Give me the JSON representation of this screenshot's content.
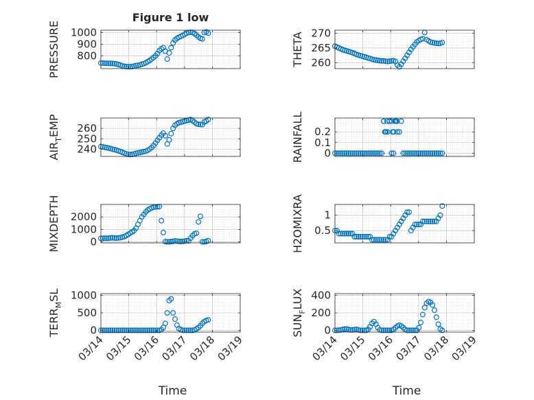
{
  "chart_data": {
    "type": "scatter",
    "title": "Figure 1 low",
    "xlabel": "Time",
    "x_tick_labels": [
      "03/14",
      "03/15",
      "03/16",
      "03/17",
      "03/18",
      "03/19"
    ],
    "x_tick_values": [
      0,
      1,
      2,
      3,
      4,
      5
    ],
    "x_unit": "days since 03/14",
    "marker": "open circle",
    "color": "#0072BD",
    "grid": "major and minor (dotted)",
    "panels": [
      {
        "id": "pressure",
        "ylabel": "PRESSURE",
        "ylim": [
          690,
          1020
        ],
        "yticks": [
          800,
          900,
          1000
        ],
        "ytick_labels": [
          "800",
          "900",
          "1000"
        ],
        "x": [
          0,
          0.07,
          0.14,
          0.21,
          0.28,
          0.35,
          0.42,
          0.49,
          0.56,
          0.63,
          0.7,
          0.77,
          0.84,
          0.91,
          0.98,
          1.05,
          1.12,
          1.19,
          1.26,
          1.33,
          1.4,
          1.47,
          1.54,
          1.61,
          1.68,
          1.75,
          1.82,
          1.89,
          1.96,
          2.03,
          2.1,
          2.17,
          2.24,
          2.31,
          2.38,
          2.45,
          2.52,
          2.59,
          2.66,
          2.73,
          2.8,
          2.87,
          2.94,
          3.01,
          3.08,
          3.15,
          3.22,
          3.29,
          3.36,
          3.43,
          3.5,
          3.57,
          3.64,
          3.71,
          3.78,
          3.85
        ],
        "y": [
          738,
          738,
          736,
          736,
          735,
          735,
          734,
          733,
          730,
          725,
          720,
          713,
          710,
          707,
          706,
          706,
          708,
          712,
          716,
          718,
          722,
          728,
          732,
          740,
          750,
          760,
          772,
          786,
          800,
          820,
          845,
          860,
          870,
          840,
          772,
          825,
          870,
          910,
          935,
          950,
          960,
          968,
          975,
          985,
          995,
          1000,
          1002,
          1000,
          992,
          978,
          962,
          950,
          945,
          1000,
          1005,
          995
        ]
      },
      {
        "id": "theta",
        "ylabel": "THETA",
        "ylim": [
          258,
          271
        ],
        "yticks": [
          260,
          265,
          270
        ],
        "ytick_labels": [
          "260",
          "265",
          "270"
        ],
        "x": [
          0,
          0.07,
          0.14,
          0.21,
          0.28,
          0.35,
          0.42,
          0.49,
          0.56,
          0.63,
          0.7,
          0.77,
          0.84,
          0.91,
          0.98,
          1.05,
          1.12,
          1.19,
          1.26,
          1.33,
          1.4,
          1.47,
          1.54,
          1.61,
          1.68,
          1.75,
          1.82,
          1.89,
          1.96,
          2.03,
          2.1,
          2.17,
          2.24,
          2.31,
          2.38,
          2.45,
          2.52,
          2.59,
          2.66,
          2.73,
          2.8,
          2.87,
          2.94,
          3.01,
          3.08,
          3.15,
          3.22,
          3.29,
          3.36,
          3.43,
          3.5,
          3.57,
          3.64,
          3.71,
          3.78,
          3.85
        ],
        "y": [
          265.6,
          265.3,
          265.0,
          264.7,
          264.4,
          264.2,
          264.0,
          263.8,
          263.6,
          263.4,
          263.1,
          262.8,
          262.6,
          262.4,
          262.2,
          262.0,
          261.8,
          261.6,
          261.4,
          261.2,
          261.0,
          260.9,
          260.8,
          260.7,
          260.6,
          260.6,
          260.5,
          260.4,
          260.5,
          260.6,
          260.7,
          260.4,
          259.2,
          258.6,
          259.5,
          260.5,
          261.5,
          262.5,
          263.5,
          264.5,
          265.4,
          266.2,
          267.0,
          267.5,
          267.9,
          268.1,
          270.2,
          267.8,
          267.4,
          267.0,
          266.8,
          266.7,
          266.6,
          266.5,
          266.6,
          266.8
        ]
      },
      {
        "id": "air_temp",
        "ylabel": "AIR",
        "ylabel_sub": "T",
        "ylabel_rest": "EMP",
        "ylim": [
          233,
          270
        ],
        "yticks": [
          240,
          250,
          260
        ],
        "ytick_labels": [
          "240",
          "250",
          "260"
        ],
        "x": [
          0,
          0.07,
          0.14,
          0.21,
          0.28,
          0.35,
          0.42,
          0.49,
          0.56,
          0.63,
          0.7,
          0.77,
          0.84,
          0.91,
          0.98,
          1.05,
          1.12,
          1.19,
          1.26,
          1.33,
          1.4,
          1.47,
          1.54,
          1.61,
          1.68,
          1.75,
          1.82,
          1.89,
          1.96,
          2.03,
          2.1,
          2.17,
          2.24,
          2.31,
          2.38,
          2.45,
          2.52,
          2.59,
          2.66,
          2.73,
          2.8,
          2.87,
          2.94,
          3.01,
          3.08,
          3.15,
          3.22,
          3.29,
          3.36,
          3.43,
          3.5,
          3.57,
          3.64,
          3.71,
          3.78,
          3.85
        ],
        "y": [
          242.5,
          242.2,
          241.8,
          241.4,
          241.0,
          240.5,
          240.0,
          239.5,
          239.0,
          238.4,
          237.8,
          237.0,
          236.2,
          235.5,
          235.0,
          234.8,
          235.0,
          235.4,
          236.0,
          236.4,
          236.8,
          237.2,
          237.6,
          238.0,
          238.8,
          240.0,
          241.5,
          243.5,
          246.0,
          248.5,
          251.0,
          253.5,
          255.5,
          253.0,
          245.0,
          249.0,
          255.0,
          260.0,
          263.0,
          264.5,
          265.5,
          266.0,
          266.5,
          267.0,
          267.5,
          268.0,
          268.5,
          267.5,
          266.0,
          264.5,
          264.0,
          263.8,
          263.6,
          266.2,
          267.0,
          268.5
        ]
      },
      {
        "id": "rainfall",
        "ylabel": "RAINFALL",
        "ylim": [
          -0.03,
          0.33
        ],
        "yticks": [
          0,
          0.1,
          0.2
        ],
        "ytick_labels": [
          "0",
          "0.1",
          "0.2"
        ],
        "x": [
          0,
          0.07,
          0.14,
          0.21,
          0.28,
          0.35,
          0.42,
          0.49,
          0.56,
          0.63,
          0.7,
          0.77,
          0.84,
          0.91,
          0.98,
          1.05,
          1.12,
          1.19,
          1.26,
          1.33,
          1.4,
          1.47,
          1.54,
          1.61,
          1.68,
          1.75,
          1.82,
          1.89,
          1.96,
          2.03,
          2.1,
          2.17,
          2.24,
          2.31,
          2.38,
          2.45,
          2.52,
          2.59,
          2.66,
          2.73,
          2.8,
          2.87,
          2.94,
          3.01,
          3.08,
          3.15,
          3.22,
          3.29,
          3.36,
          3.43,
          3.5,
          3.57,
          3.64,
          3.71,
          3.78,
          3.85,
          1.75,
          1.79,
          1.83,
          1.87,
          2.03,
          2.07,
          2.11,
          2.15,
          2.19,
          2.23
        ],
        "y": [
          0,
          0,
          0,
          0,
          0,
          0,
          0,
          0,
          0,
          0,
          0,
          0,
          0,
          0,
          0,
          0,
          0,
          0,
          0,
          0,
          0,
          0,
          0,
          0,
          0,
          0.3,
          0.2,
          0.2,
          0.3,
          0,
          0,
          0.3,
          0.2,
          0.2,
          0.3,
          0,
          0,
          0,
          0,
          0,
          0,
          0,
          0,
          0,
          0,
          0,
          0,
          0,
          0,
          0,
          0,
          0,
          0,
          0,
          0,
          0,
          0.3,
          0.2,
          0.2,
          0.3,
          0.3,
          0.2,
          0.2,
          0.3,
          0.3,
          0.3
        ]
      },
      {
        "id": "mixdepth",
        "ylabel": "MIXDEPTH",
        "ylim": [
          -80,
          3000
        ],
        "yticks": [
          0,
          1000,
          2000
        ],
        "ytick_labels": [
          "0",
          "1000",
          "2000"
        ],
        "x": [
          0,
          0.07,
          0.14,
          0.21,
          0.28,
          0.35,
          0.42,
          0.49,
          0.56,
          0.63,
          0.7,
          0.77,
          0.84,
          0.91,
          0.98,
          1.05,
          1.12,
          1.19,
          1.26,
          1.33,
          1.4,
          1.47,
          1.54,
          1.61,
          1.68,
          1.75,
          1.82,
          1.89,
          1.96,
          2.03,
          2.1,
          2.17,
          2.24,
          2.31,
          2.38,
          2.45,
          2.52,
          2.59,
          2.66,
          2.73,
          2.8,
          2.87,
          2.94,
          3.01,
          3.08,
          3.15,
          3.22,
          3.29,
          3.36,
          3.43,
          3.5,
          3.57,
          3.64,
          3.71,
          3.78,
          3.85
        ],
        "y": [
          280,
          290,
          300,
          290,
          300,
          320,
          330,
          310,
          300,
          320,
          340,
          380,
          420,
          500,
          600,
          700,
          800,
          900,
          1100,
          1400,
          1700,
          2000,
          2200,
          2400,
          2550,
          2650,
          2720,
          2780,
          2800,
          2820,
          2830,
          1700,
          750,
          20,
          0,
          0,
          20,
          40,
          80,
          60,
          40,
          30,
          40,
          60,
          100,
          80,
          300,
          500,
          650,
          700,
          1600,
          2050,
          0,
          0,
          30,
          100
        ]
      },
      {
        "id": "h2omixra",
        "ylabel": "H2OMIXRA",
        "ylim": [
          0.1,
          1.35
        ],
        "yticks": [
          0.5,
          1
        ],
        "ytick_labels": [
          "0.5",
          "1"
        ],
        "x": [
          0,
          0.07,
          0.14,
          0.21,
          0.28,
          0.35,
          0.42,
          0.49,
          0.56,
          0.63,
          0.7,
          0.77,
          0.84,
          0.91,
          0.98,
          1.05,
          1.12,
          1.19,
          1.26,
          1.33,
          1.4,
          1.47,
          1.54,
          1.61,
          1.68,
          1.75,
          1.82,
          1.89,
          1.96,
          2.03,
          2.1,
          2.17,
          2.24,
          2.31,
          2.38,
          2.45,
          2.52,
          2.59,
          2.66,
          2.73,
          2.8,
          2.87,
          2.94,
          3.01,
          3.08,
          3.15,
          3.22,
          3.29,
          3.36,
          3.43,
          3.5,
          3.57,
          3.64,
          3.71,
          3.78,
          3.85
        ],
        "y": [
          0.5,
          0.5,
          0.4,
          0.4,
          0.4,
          0.4,
          0.4,
          0.4,
          0.4,
          0.4,
          0.3,
          0.3,
          0.3,
          0.3,
          0.3,
          0.3,
          0.3,
          0.3,
          0.3,
          0.2,
          0.2,
          0.2,
          0.2,
          0.2,
          0.2,
          0.2,
          0.2,
          0.2,
          0.3,
          0.3,
          0.4,
          0.5,
          0.6,
          0.7,
          0.8,
          0.9,
          1.0,
          1.1,
          1.1,
          0.5,
          0.6,
          0.7,
          0.7,
          0.7,
          0.7,
          0.8,
          0.8,
          0.8,
          0.8,
          0.8,
          0.8,
          0.8,
          0.8,
          0.9,
          1.0,
          1.3
        ]
      },
      {
        "id": "terr_msl",
        "ylabel": "TERR",
        "ylabel_sub": "M",
        "ylabel_rest": "SL",
        "ylim": [
          -50,
          1050
        ],
        "yticks": [
          0,
          500,
          1000
        ],
        "ytick_labels": [
          "0",
          "500",
          "1000"
        ],
        "x": [
          0,
          0.07,
          0.14,
          0.21,
          0.28,
          0.35,
          0.42,
          0.49,
          0.56,
          0.63,
          0.7,
          0.77,
          0.84,
          0.91,
          0.98,
          1.05,
          1.12,
          1.19,
          1.26,
          1.33,
          1.4,
          1.47,
          1.54,
          1.61,
          1.68,
          1.75,
          1.82,
          1.89,
          1.96,
          2.03,
          2.1,
          2.17,
          2.24,
          2.31,
          2.38,
          2.45,
          2.52,
          2.59,
          2.66,
          2.73,
          2.8,
          2.87,
          2.94,
          3.01,
          3.08,
          3.15,
          3.22,
          3.29,
          3.36,
          3.43,
          3.5,
          3.57,
          3.64,
          3.71,
          3.78,
          3.85
        ],
        "y": [
          0,
          0,
          0,
          0,
          0,
          0,
          0,
          0,
          0,
          0,
          0,
          0,
          0,
          0,
          0,
          0,
          0,
          0,
          0,
          0,
          0,
          0,
          0,
          0,
          0,
          0,
          0,
          0,
          0,
          0,
          0,
          20,
          80,
          200,
          500,
          850,
          900,
          500,
          320,
          150,
          50,
          20,
          0,
          0,
          0,
          0,
          0,
          0,
          10,
          40,
          80,
          130,
          200,
          250,
          280,
          300
        ]
      },
      {
        "id": "sun_flux",
        "ylabel": "SUN",
        "ylabel_sub": "F",
        "ylabel_rest": "LUX",
        "ylim": [
          -20,
          420
        ],
        "yticks": [
          0,
          200,
          400
        ],
        "ytick_labels": [
          "0",
          "200",
          "400"
        ],
        "x": [
          0,
          0.07,
          0.14,
          0.21,
          0.28,
          0.35,
          0.42,
          0.49,
          0.56,
          0.63,
          0.7,
          0.77,
          0.84,
          0.91,
          0.98,
          1.05,
          1.12,
          1.19,
          1.26,
          1.33,
          1.4,
          1.47,
          1.54,
          1.61,
          1.68,
          1.75,
          1.82,
          1.89,
          1.96,
          2.03,
          2.1,
          2.17,
          2.24,
          2.31,
          2.38,
          2.45,
          2.52,
          2.59,
          2.66,
          2.73,
          2.8,
          2.87,
          2.94,
          3.01,
          3.08,
          3.15,
          3.22,
          3.29,
          3.36,
          3.43,
          3.5,
          3.57,
          3.64,
          3.71,
          3.78,
          3.85
        ],
        "y": [
          0,
          0,
          2,
          5,
          10,
          15,
          15,
          10,
          5,
          5,
          8,
          10,
          5,
          0,
          0,
          0,
          0,
          10,
          40,
          80,
          100,
          70,
          30,
          5,
          0,
          0,
          0,
          0,
          0,
          0,
          10,
          30,
          50,
          60,
          50,
          30,
          10,
          0,
          0,
          0,
          0,
          0,
          0,
          30,
          90,
          180,
          260,
          310,
          330,
          320,
          290,
          230,
          150,
          70,
          15,
          0
        ]
      }
    ]
  }
}
